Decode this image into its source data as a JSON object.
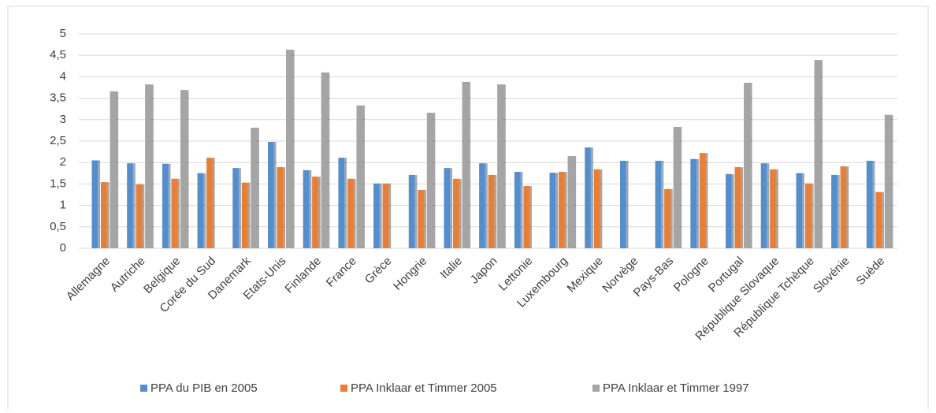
{
  "chart_data": {
    "type": "bar",
    "categories": [
      "Allemagne",
      "Autriche",
      "Belgique",
      "Corée du Sud",
      "Danemark",
      "Etats-Unis",
      "Finlande",
      "France",
      "Grèce",
      "Hongrie",
      "Italie",
      "Japon",
      "Lettonie",
      "Luxembourg",
      "Mexique",
      "Norvège",
      "Pays-Bas",
      "Pologne",
      "Portugal",
      "République Slovaque",
      "République Tchèque",
      "Slovénie",
      "Suède"
    ],
    "series": [
      {
        "name": "PPA du PIB en 2005",
        "color": "#4f8fd3",
        "values": [
          2.05,
          1.98,
          1.97,
          1.75,
          1.87,
          2.48,
          1.82,
          2.11,
          1.51,
          1.71,
          1.87,
          1.98,
          1.78,
          1.76,
          2.35,
          2.04,
          2.04,
          2.08,
          1.73,
          1.98,
          1.75,
          1.71,
          2.04
        ]
      },
      {
        "name": "PPA Inklaar et Timmer 2005",
        "color": "#ed7d31",
        "values": [
          1.54,
          1.49,
          1.62,
          2.11,
          1.53,
          1.89,
          1.67,
          1.62,
          1.51,
          1.36,
          1.62,
          1.71,
          1.45,
          1.78,
          1.84,
          null,
          1.38,
          2.22,
          1.89,
          1.84,
          1.51,
          1.91,
          1.31
        ]
      },
      {
        "name": "PPA Inklaar et Timmer 1997",
        "color": "#a5a5a5",
        "values": [
          3.66,
          3.82,
          3.69,
          null,
          2.81,
          4.63,
          4.1,
          3.33,
          null,
          3.16,
          3.88,
          3.82,
          null,
          2.15,
          null,
          null,
          2.83,
          null,
          3.86,
          null,
          4.39,
          null,
          3.11
        ]
      }
    ],
    "ylim": [
      0,
      5
    ],
    "yticks": [
      0,
      {
        "value": 0.5,
        "label": "0,5"
      },
      1,
      {
        "value": 1.5,
        "label": "1,5"
      },
      2,
      {
        "value": 2.5,
        "label": "2,5"
      },
      3,
      {
        "value": 3.5,
        "label": "3,5"
      },
      4,
      {
        "value": 4.5,
        "label": "4,5"
      },
      5
    ],
    "grid": true
  }
}
